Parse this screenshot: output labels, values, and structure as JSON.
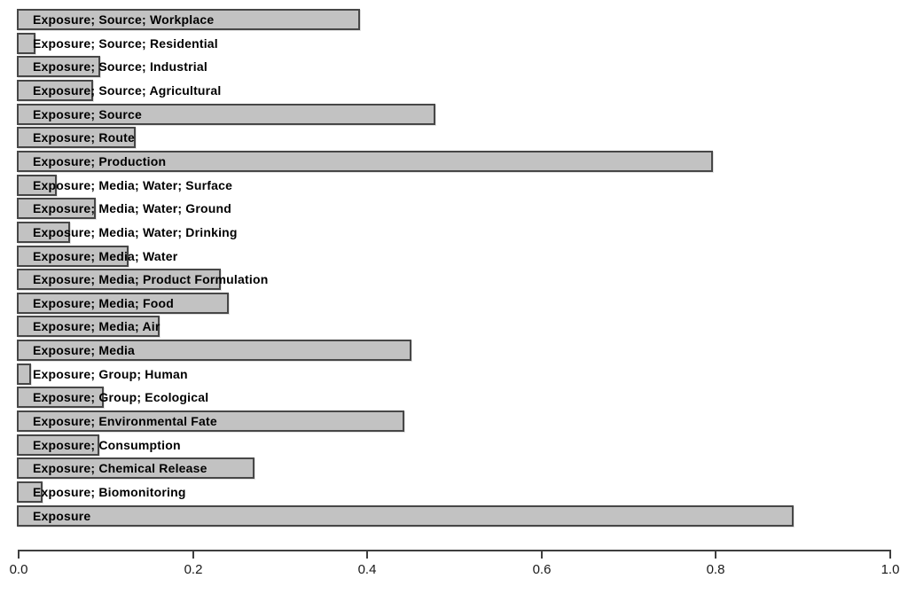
{
  "chart_data": {
    "type": "bar",
    "orientation": "horizontal",
    "title": "",
    "xlabel": "",
    "ylabel": "",
    "xlim": [
      0.0,
      1.0
    ],
    "grid": false,
    "legend": false,
    "x_ticks": [
      "0.0",
      "0.2",
      "0.4",
      "0.6",
      "0.8",
      "1.0"
    ],
    "x_tick_values": [
      0.0,
      0.2,
      0.4,
      0.6,
      0.8,
      1.0
    ],
    "categories": [
      "Exposure; Source; Workplace",
      "Exposure; Source; Residential",
      "Exposure; Source; Industrial",
      "Exposure; Source; Agricultural",
      "Exposure; Source",
      "Exposure; Route",
      "Exposure; Production",
      "Exposure; Media; Water; Surface",
      "Exposure; Media; Water; Ground",
      "Exposure; Media; Water; Drinking",
      "Exposure; Media; Water",
      "Exposure; Media; Product Formulation",
      "Exposure; Media; Food",
      "Exposure; Media; Air",
      "Exposure; Media",
      "Exposure; Group; Human",
      "Exposure; Group; Ecological",
      "Exposure; Environmental Fate",
      "Exposure; Consumption",
      "Exposure; Chemical Release",
      "Exposure; Biomonitoring",
      "Exposure"
    ],
    "values": [
      0.39,
      0.017,
      0.092,
      0.083,
      0.476,
      0.132,
      0.795,
      0.042,
      0.086,
      0.057,
      0.124,
      0.23,
      0.239,
      0.16,
      0.449,
      0.012,
      0.096,
      0.44,
      0.091,
      0.269,
      0.025,
      0.887
    ],
    "colors": {
      "bar_fill": "#c2c2c2",
      "bar_border": "#474747",
      "axis": "#3f3f3f",
      "label_text": "#000000",
      "tick_text": "#1a1a1a",
      "background": "#ffffff"
    }
  }
}
